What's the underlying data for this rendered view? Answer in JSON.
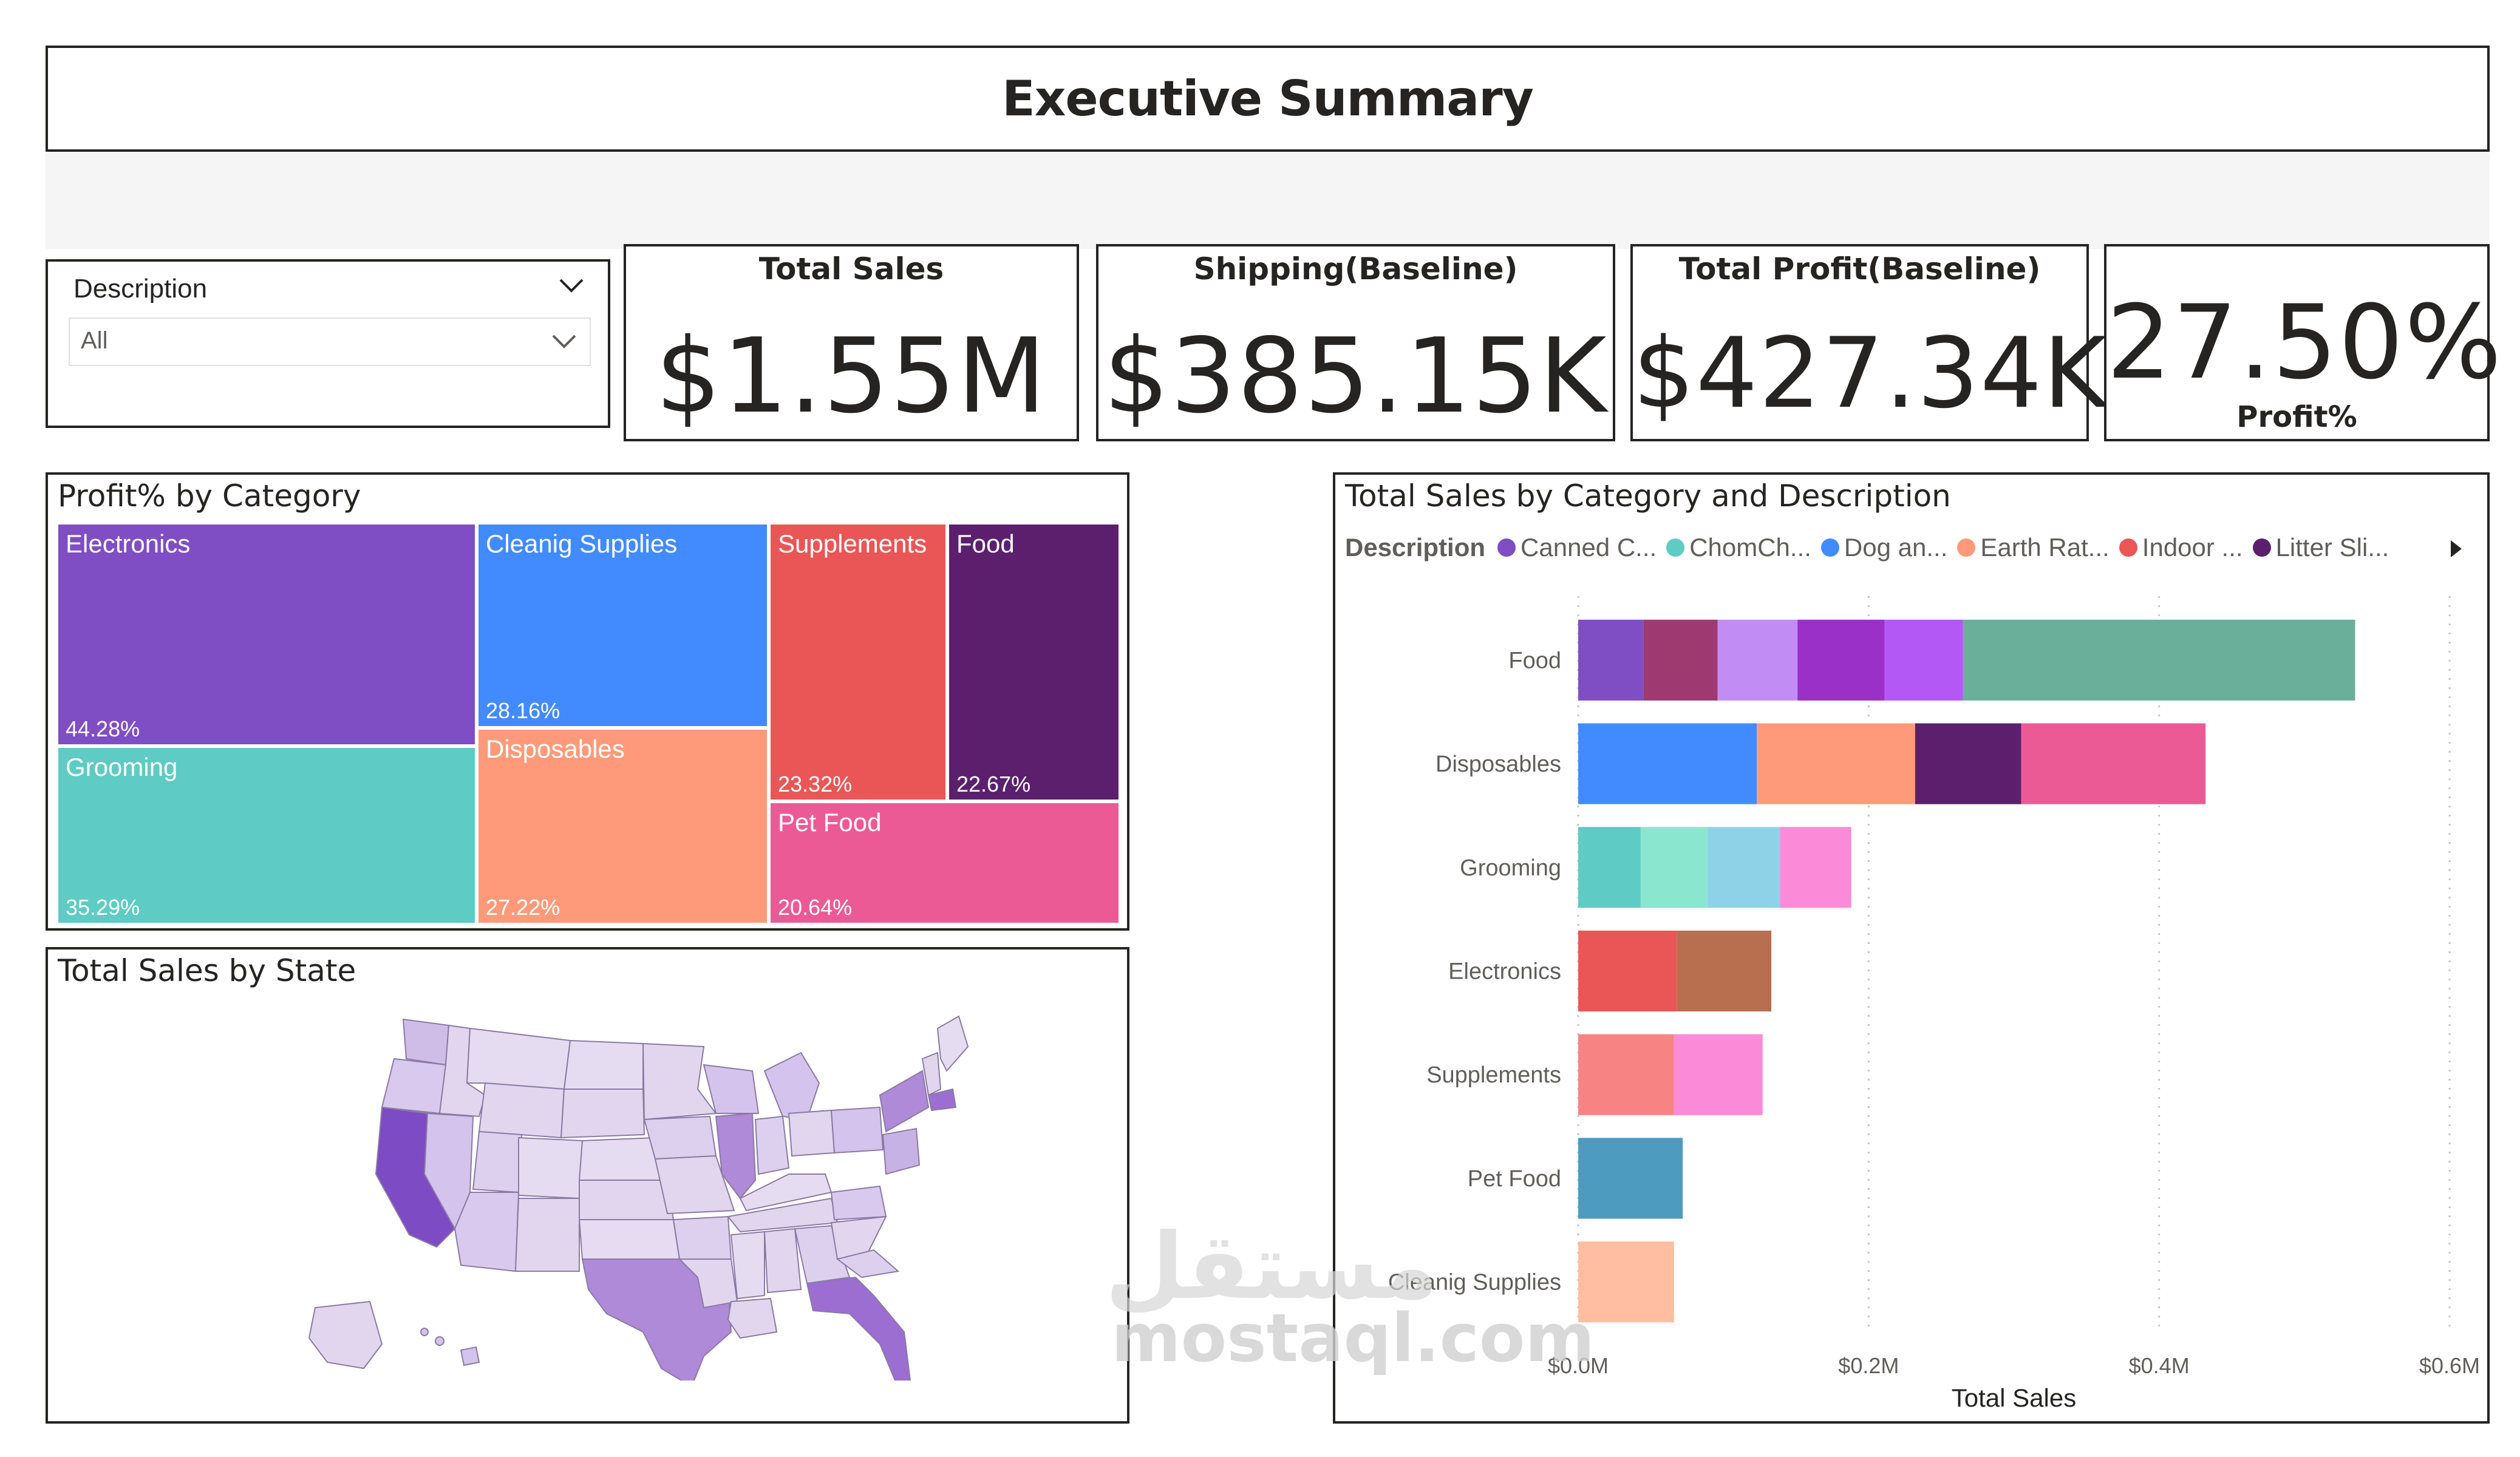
{
  "header": {
    "title": "Executive Summary"
  },
  "slicer": {
    "label": "Description",
    "value": "All"
  },
  "cards": [
    {
      "title": "Total Sales",
      "value": "$1.55M"
    },
    {
      "title": "Shipping(Baseline)",
      "value": "$385.15K"
    },
    {
      "title": "Total Profit(Baseline)",
      "value": "$427.34K"
    }
  ],
  "profit_card": {
    "value": "27.50%",
    "label": "Profit%"
  },
  "treemap": {
    "title": "Profit% by Category",
    "cells": [
      {
        "name": "Electronics",
        "value": "44.28%",
        "color": "#7f4dc4"
      },
      {
        "name": "Grooming",
        "value": "35.29%",
        "color": "#5ecbc4"
      },
      {
        "name": "Cleanig Supplies",
        "value": "28.16%",
        "color": "#428bff"
      },
      {
        "name": "Disposables",
        "value": "27.22%",
        "color": "#fe9a7a"
      },
      {
        "name": "Supplements",
        "value": "23.32%",
        "color": "#ea5656"
      },
      {
        "name": "Food",
        "value": "22.67%",
        "color": "#5b1f6e"
      },
      {
        "name": "Pet Food",
        "value": "20.64%",
        "color": "#ec5a96"
      }
    ]
  },
  "map": {
    "title": "Total Sales by State"
  },
  "bar_chart_title": "Total Sales by Category and Description",
  "legend": {
    "title": "Description",
    "items": [
      {
        "label": "Canned C...",
        "color": "#7f4dc4"
      },
      {
        "label": "ChomCh...",
        "color": "#5ecbc4"
      },
      {
        "label": "Dog an...",
        "color": "#428bff"
      },
      {
        "label": "Earth Rat...",
        "color": "#fe9a7a"
      },
      {
        "label": "Indoor ...",
        "color": "#ea5656"
      },
      {
        "label": "Litter Sli...",
        "color": "#5b1f6e"
      }
    ]
  },
  "chart_data": {
    "type": "bar",
    "orientation": "horizontal",
    "stacked": true,
    "title": "Total Sales by Category and Description",
    "xlabel": "Total Sales",
    "ylabel": "",
    "xlim": [
      0,
      0.6
    ],
    "x_ticks": [
      "$0.0M",
      "$0.2M",
      "$0.4M",
      "$0.6M"
    ],
    "categories": [
      "Food",
      "Disposables",
      "Grooming",
      "Electronics",
      "Supplements",
      "Pet Food",
      "Cleanig Supplies"
    ],
    "stacks": [
      [
        {
          "value": 0.045,
          "color": "#7f4dc4"
        },
        {
          "value": 0.051,
          "color": "#9e3a70"
        },
        {
          "value": 0.055,
          "color": "#c28cf5"
        },
        {
          "value": 0.06,
          "color": "#9b30c9"
        },
        {
          "value": 0.054,
          "color": "#b358f5"
        },
        {
          "value": 0.27,
          "color": "#6aaf9a"
        }
      ],
      [
        {
          "value": 0.123,
          "color": "#428bff"
        },
        {
          "value": 0.109,
          "color": "#fe9a7a"
        },
        {
          "value": 0.073,
          "color": "#5b1f6e"
        },
        {
          "value": 0.127,
          "color": "#ec5a96"
        }
      ],
      [
        {
          "value": 0.043,
          "color": "#5ecbc4"
        },
        {
          "value": 0.046,
          "color": "#8ae6cf"
        },
        {
          "value": 0.05,
          "color": "#8ed2e8"
        },
        {
          "value": 0.049,
          "color": "#fb8ad8"
        }
      ],
      [
        {
          "value": 0.068,
          "color": "#ea5656"
        },
        {
          "value": 0.065,
          "color": "#b86f50"
        }
      ],
      [
        {
          "value": 0.066,
          "color": "#f78383"
        },
        {
          "value": 0.061,
          "color": "#fb8ad8"
        }
      ],
      [
        {
          "value": 0.072,
          "color": "#4e9bc0"
        }
      ],
      [
        {
          "value": 0.066,
          "color": "#ffbea1"
        }
      ]
    ]
  },
  "watermark": {
    "arabic": "مستقل",
    "latin": "mostaql.com"
  }
}
